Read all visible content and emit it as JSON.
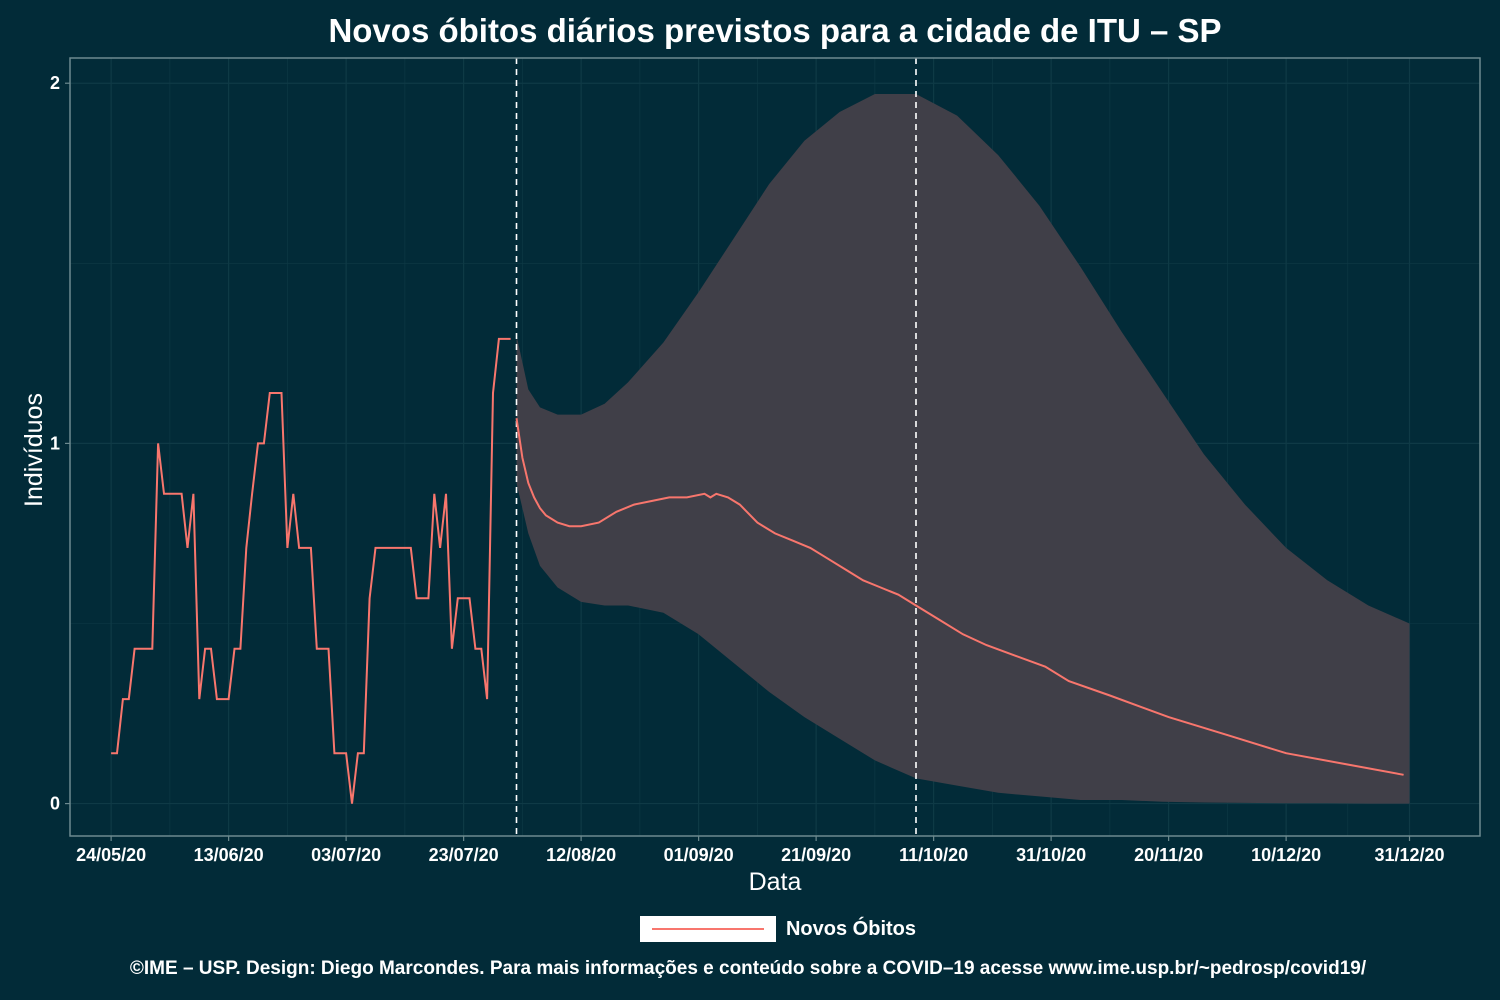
{
  "chart_data": {
    "type": "line",
    "title": "Novos óbitos diários previstos para a cidade de ITU – SP",
    "xlabel": "Data",
    "ylabel": "Indivíduos",
    "ylim": [
      -0.09,
      2.07
    ],
    "y_ticks": [
      0,
      1,
      2
    ],
    "x_tick_labels": [
      "24/05/20",
      "13/06/20",
      "03/07/20",
      "23/07/20",
      "12/08/20",
      "01/09/20",
      "21/09/20",
      "11/10/20",
      "31/10/20",
      "20/11/20",
      "10/12/20",
      "31/12/20"
    ],
    "x_range": [
      "2020-05-17",
      "2021-01-12"
    ],
    "grid": true,
    "legend_position": "bottom",
    "vlines": [
      "2020-08-01",
      "2020-10-08"
    ],
    "colors": {
      "background": "#022b38",
      "line": "#f8766d",
      "band": "#403f48",
      "grid": "#0f3a46",
      "axis": "#6d8a8f"
    },
    "series": [
      {
        "name": "Novos Óbitos",
        "kind": "observed",
        "x": [
          "2020-05-24",
          "2020-05-25",
          "2020-05-26",
          "2020-05-27",
          "2020-05-28",
          "2020-05-29",
          "2020-05-30",
          "2020-05-31",
          "2020-06-01",
          "2020-06-02",
          "2020-06-03",
          "2020-06-04",
          "2020-06-05",
          "2020-06-06",
          "2020-06-07",
          "2020-06-08",
          "2020-06-09",
          "2020-06-10",
          "2020-06-11",
          "2020-06-12",
          "2020-06-13",
          "2020-06-14",
          "2020-06-15",
          "2020-06-16",
          "2020-06-17",
          "2020-06-18",
          "2020-06-19",
          "2020-06-20",
          "2020-06-21",
          "2020-06-22",
          "2020-06-23",
          "2020-06-24",
          "2020-06-25",
          "2020-06-26",
          "2020-06-27",
          "2020-06-28",
          "2020-06-29",
          "2020-06-30",
          "2020-07-01",
          "2020-07-02",
          "2020-07-03",
          "2020-07-04",
          "2020-07-05",
          "2020-07-06",
          "2020-07-07",
          "2020-07-08",
          "2020-07-09",
          "2020-07-10",
          "2020-07-11",
          "2020-07-12",
          "2020-07-13",
          "2020-07-14",
          "2020-07-15",
          "2020-07-16",
          "2020-07-17",
          "2020-07-18",
          "2020-07-19",
          "2020-07-20",
          "2020-07-21",
          "2020-07-22",
          "2020-07-23",
          "2020-07-24",
          "2020-07-25",
          "2020-07-26",
          "2020-07-27",
          "2020-07-28",
          "2020-07-29",
          "2020-07-30",
          "2020-07-31"
        ],
        "values": [
          0.14,
          0.14,
          0.29,
          0.29,
          0.43,
          0.43,
          0.43,
          0.43,
          1.0,
          0.86,
          0.86,
          0.86,
          0.86,
          0.71,
          0.86,
          0.29,
          0.43,
          0.43,
          0.29,
          0.29,
          0.29,
          0.43,
          0.43,
          0.71,
          0.86,
          1.0,
          1.0,
          1.14,
          1.14,
          1.14,
          0.71,
          0.86,
          0.71,
          0.71,
          0.71,
          0.43,
          0.43,
          0.43,
          0.14,
          0.14,
          0.14,
          0.0,
          0.14,
          0.14,
          0.57,
          0.71,
          0.71,
          0.71,
          0.71,
          0.71,
          0.71,
          0.71,
          0.57,
          0.57,
          0.57,
          0.86,
          0.71,
          0.86,
          0.43,
          0.57,
          0.57,
          0.57,
          0.43,
          0.43,
          0.29,
          1.14,
          1.29,
          1.29,
          1.29
        ]
      },
      {
        "name": "Novos Óbitos",
        "kind": "forecast",
        "x": [
          "2020-08-01",
          "2020-08-02",
          "2020-08-03",
          "2020-08-04",
          "2020-08-05",
          "2020-08-06",
          "2020-08-08",
          "2020-08-10",
          "2020-08-12",
          "2020-08-15",
          "2020-08-18",
          "2020-08-21",
          "2020-08-24",
          "2020-08-27",
          "2020-08-30",
          "2020-09-02",
          "2020-09-03",
          "2020-09-04",
          "2020-09-06",
          "2020-09-08",
          "2020-09-11",
          "2020-09-14",
          "2020-09-17",
          "2020-09-20",
          "2020-09-23",
          "2020-09-26",
          "2020-09-29",
          "2020-10-02",
          "2020-10-05",
          "2020-10-08",
          "2020-10-12",
          "2020-10-16",
          "2020-10-20",
          "2020-10-25",
          "2020-10-30",
          "2020-11-03",
          "2020-11-10",
          "2020-11-20",
          "2020-11-30",
          "2020-12-10",
          "2020-12-20",
          "2020-12-30"
        ],
        "values": [
          1.07,
          0.96,
          0.89,
          0.85,
          0.82,
          0.8,
          0.78,
          0.77,
          0.77,
          0.78,
          0.81,
          0.83,
          0.84,
          0.85,
          0.85,
          0.86,
          0.85,
          0.86,
          0.85,
          0.83,
          0.78,
          0.75,
          0.73,
          0.71,
          0.68,
          0.65,
          0.62,
          0.6,
          0.58,
          0.55,
          0.51,
          0.47,
          0.44,
          0.41,
          0.38,
          0.34,
          0.3,
          0.24,
          0.19,
          0.14,
          0.11,
          0.08
        ]
      }
    ],
    "band": {
      "x": [
        "2020-08-01",
        "2020-08-03",
        "2020-08-05",
        "2020-08-08",
        "2020-08-12",
        "2020-08-16",
        "2020-08-20",
        "2020-08-26",
        "2020-09-01",
        "2020-09-07",
        "2020-09-13",
        "2020-09-19",
        "2020-09-25",
        "2020-10-01",
        "2020-10-08",
        "2020-10-15",
        "2020-10-22",
        "2020-10-29",
        "2020-11-05",
        "2020-11-12",
        "2020-11-19",
        "2020-11-26",
        "2020-12-03",
        "2020-12-10",
        "2020-12-17",
        "2020-12-24",
        "2020-12-31"
      ],
      "upper": [
        1.3,
        1.15,
        1.1,
        1.08,
        1.08,
        1.11,
        1.17,
        1.28,
        1.42,
        1.57,
        1.72,
        1.84,
        1.92,
        1.97,
        1.97,
        1.91,
        1.8,
        1.66,
        1.49,
        1.31,
        1.14,
        0.97,
        0.83,
        0.71,
        0.62,
        0.55,
        0.5
      ],
      "lower": [
        0.89,
        0.75,
        0.66,
        0.6,
        0.56,
        0.55,
        0.55,
        0.53,
        0.47,
        0.39,
        0.31,
        0.24,
        0.18,
        0.12,
        0.07,
        0.05,
        0.03,
        0.02,
        0.01,
        0.01,
        0.005,
        0.003,
        0.002,
        0.001,
        0.001,
        0.0,
        0.0
      ]
    }
  },
  "legend": {
    "label": "Novos Óbitos"
  },
  "caption": "©IME – USP. Design: Diego Marcondes. Para mais informações e conteúdo sobre a COVID–19 acesse www.ime.usp.br/~pedrosp/covid19/"
}
